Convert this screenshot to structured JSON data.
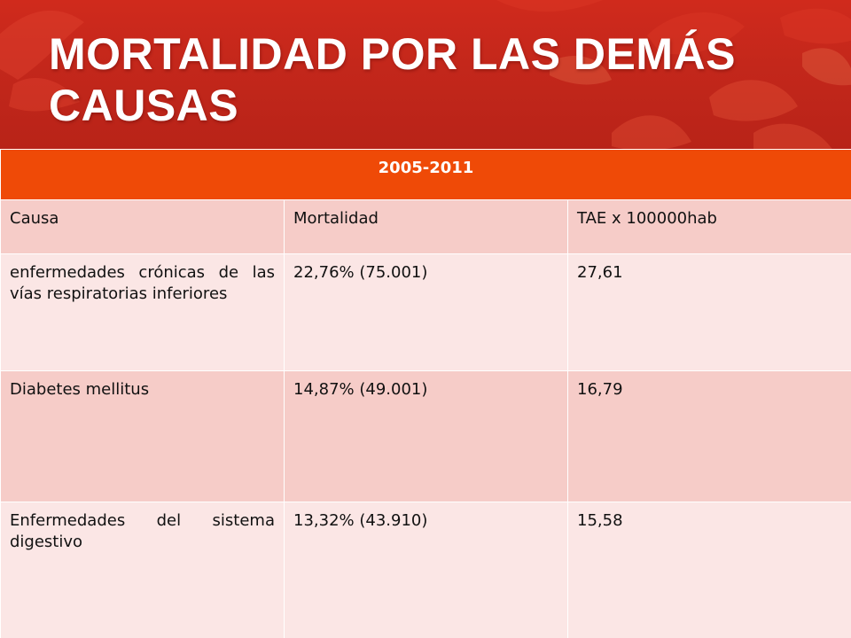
{
  "slide": {
    "title": "MORTALIDAD POR LAS DEMÁS CAUSAS",
    "colors": {
      "banner": "#c3271b",
      "period_header": "#ef4a07",
      "row_dark": "#f6ccc8",
      "row_light": "#fbe6e5",
      "title_text": "#ffffff"
    }
  },
  "table": {
    "period": "2005-2011",
    "columns": [
      "Causa",
      "Mortalidad",
      "TAE x 100000hab"
    ],
    "rows": [
      [
        "enfermedades crónicas de las vías respiratorias inferiores",
        "22,76% (75.001)",
        "27,61"
      ],
      [
        "Diabetes mellitus",
        "14,87% (49.001)",
        "16,79"
      ],
      [
        "Enfermedades del sistema digestivo",
        "13,32% (43.910)",
        "15,58"
      ]
    ]
  }
}
